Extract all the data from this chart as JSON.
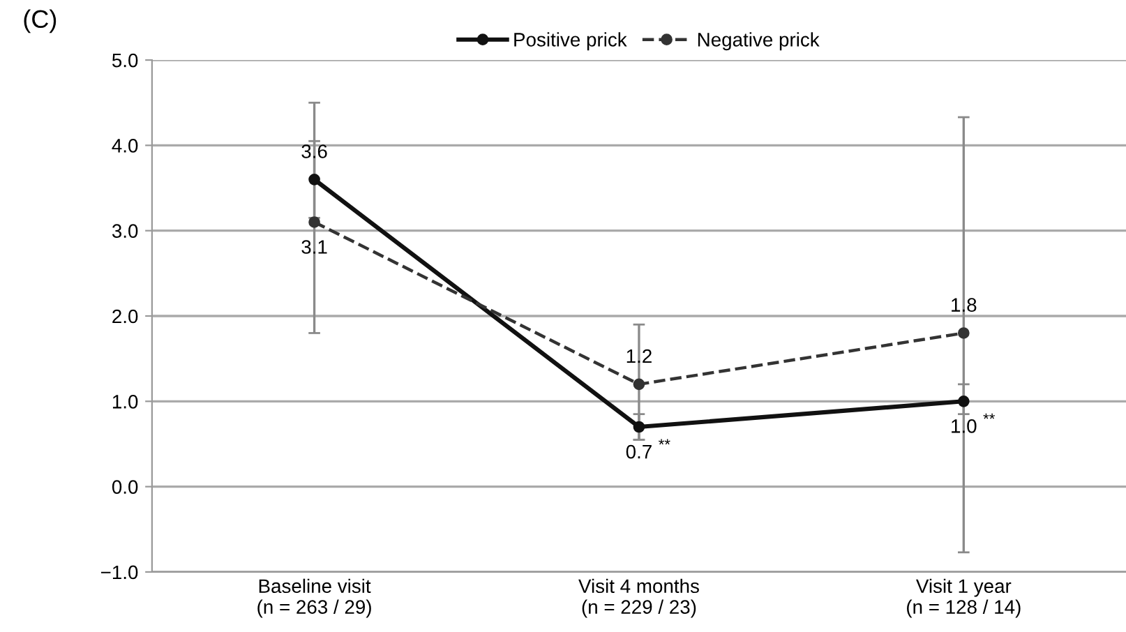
{
  "chart_data": {
    "type": "line",
    "categories": [
      "Baseline visit\n(n = 263 / 29)",
      "Visit 4 months\n(n = 229 / 23)",
      "Visit 1 year\n(n = 128 / 14)"
    ],
    "series": [
      {
        "name": "Positive prick",
        "color": "#111111",
        "line_style": "solid",
        "values": [
          3.6,
          0.7,
          1.0
        ],
        "value_labels": [
          "3.6",
          "0.7",
          "1.0"
        ],
        "errors": [
          [
            3.15,
            4.05
          ],
          [
            0.55,
            0.85
          ],
          [
            0.85,
            1.2
          ]
        ]
      },
      {
        "name": "Negative prick",
        "color": "#333333",
        "line_style": "dashed",
        "values": [
          3.1,
          1.2,
          1.8
        ],
        "value_labels": [
          "3.1",
          "1.2",
          "1.8"
        ],
        "errors": [
          [
            1.8,
            4.5
          ],
          [
            0.55,
            1.9
          ],
          [
            -0.77,
            4.33
          ]
        ]
      }
    ],
    "ylim": [
      -1.0,
      5.0
    ],
    "yticks": [
      {
        "value": -1.0,
        "label": "−1.0"
      },
      {
        "value": 0.0,
        "label": "0.0"
      },
      {
        "value": 1.0,
        "label": "1.0"
      },
      {
        "value": 2.0,
        "label": "2.0"
      },
      {
        "value": 3.0,
        "label": "3.0"
      },
      {
        "value": 4.0,
        "label": "4.0"
      },
      {
        "value": 5.0,
        "label": "5.0"
      }
    ],
    "grid": "y",
    "legend": "top",
    "marker": "circle",
    "annotations": [
      "(C)",
      {
        "text": "**",
        "x": "Visit 4 months\n(n = 229 / 23)",
        "y": 0.7
      },
      {
        "text": "**",
        "x": "Visit 1 year\n(n = 128 / 14)",
        "y": 1.0
      }
    ]
  }
}
